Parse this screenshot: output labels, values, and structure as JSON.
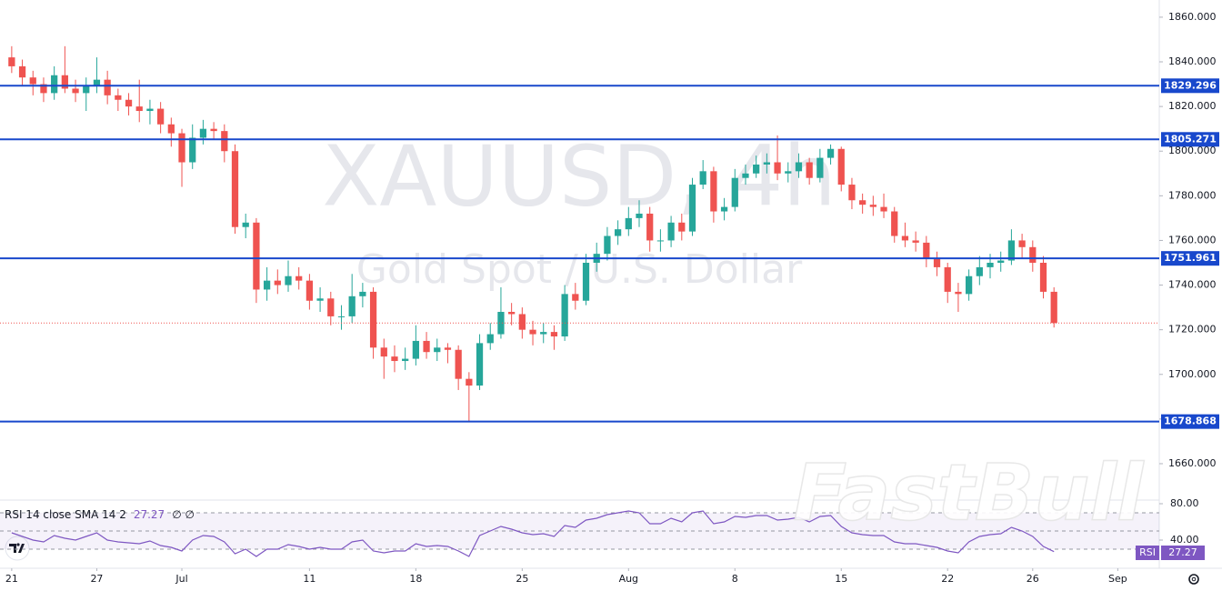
{
  "chart_data": {
    "type": "candlestick",
    "title": "XAUUSD, 4h",
    "subtitle": "Gold Spot / U.S. Dollar",
    "watermark": "FastBull",
    "xlim": [
      -1.1,
      107.9
    ],
    "xticks": [
      {
        "value": 0,
        "label": "21"
      },
      {
        "value": 8,
        "label": "27"
      },
      {
        "value": 16,
        "label": "Jul"
      },
      {
        "value": 28,
        "label": "11"
      },
      {
        "value": 38,
        "label": "18"
      },
      {
        "value": 48,
        "label": "25"
      },
      {
        "value": 58,
        "label": "Aug"
      },
      {
        "value": 68,
        "label": "8"
      },
      {
        "value": 78,
        "label": "15"
      },
      {
        "value": 88,
        "label": "22"
      },
      {
        "value": 96,
        "label": "26"
      },
      {
        "value": 104,
        "label": "Sep"
      }
    ],
    "ylim": [
      1643.7,
      1867.7
    ],
    "yticks": [
      {
        "value": 1660,
        "label": "1660.000"
      },
      {
        "value": 1680,
        "label": "1680.000"
      },
      {
        "value": 1700,
        "label": "1700.000"
      },
      {
        "value": 1720,
        "label": "1720.000"
      },
      {
        "value": 1740,
        "label": "1740.000"
      },
      {
        "value": 1760,
        "label": "1760.000"
      },
      {
        "value": 1780,
        "label": "1780.000"
      },
      {
        "value": 1800,
        "label": "1800.000"
      },
      {
        "value": 1820,
        "label": "1820.000"
      },
      {
        "value": 1840,
        "label": "1840.000"
      },
      {
        "value": 1860,
        "label": "1860.000"
      }
    ],
    "up_color": "#26a69a",
    "down_color": "#ef5350",
    "open": [
      1842,
      1838,
      1833,
      1830,
      1826,
      1834,
      1828,
      1826,
      1829,
      1832,
      1825,
      1823,
      1820,
      1818,
      1819,
      1812,
      1808,
      1795,
      1806,
      1810,
      1809,
      1800,
      1766,
      1768,
      1738,
      1742,
      1740,
      1744,
      1742,
      1733,
      1734,
      1726,
      1726,
      1735,
      1737,
      1712,
      1708,
      1706,
      1707,
      1715,
      1710,
      1712,
      1711,
      1698,
      1695,
      1714,
      1718,
      1728,
      1727,
      1720,
      1718,
      1719,
      1717,
      1736,
      1733,
      1750,
      1754,
      1762,
      1765,
      1770,
      1772,
      1760,
      1760,
      1768,
      1764,
      1785,
      1791,
      1773,
      1775,
      1788,
      1790,
      1794,
      1795,
      1790,
      1791,
      1795,
      1788,
      1797,
      1801,
      1785,
      1778,
      1776,
      1775,
      1773,
      1762,
      1760,
      1759,
      1752,
      1748,
      1737,
      1736,
      1744,
      1748,
      1750,
      1751,
      1760,
      1757,
      1750,
      1737
    ],
    "high": [
      1847,
      1841,
      1836,
      1833,
      1838,
      1847,
      1832,
      1833,
      1842,
      1836,
      1828,
      1826,
      1832,
      1823,
      1822,
      1815,
      1810,
      1812,
      1814,
      1813,
      1812,
      1803,
      1772,
      1770,
      1748,
      1747,
      1751,
      1748,
      1745,
      1739,
      1737,
      1731,
      1745,
      1741,
      1739,
      1716,
      1713,
      1712,
      1722,
      1719,
      1716,
      1714,
      1713,
      1701,
      1718,
      1723,
      1739,
      1732,
      1730,
      1724,
      1723,
      1722,
      1740,
      1741,
      1754,
      1759,
      1766,
      1769,
      1775,
      1778,
      1775,
      1765,
      1771,
      1772,
      1788,
      1796,
      1793,
      1779,
      1792,
      1794,
      1798,
      1799,
      1807,
      1795,
      1799,
      1797,
      1801,
      1803,
      1802,
      1788,
      1781,
      1780,
      1781,
      1775,
      1768,
      1764,
      1762,
      1755,
      1750,
      1741,
      1747,
      1753,
      1754,
      1755,
      1765,
      1763,
      1760,
      1753,
      1739
    ],
    "low": [
      1835,
      1829,
      1825,
      1822,
      1823,
      1826,
      1822,
      1818,
      1826,
      1821,
      1818,
      1816,
      1813,
      1812,
      1808,
      1802,
      1784,
      1792,
      1803,
      1805,
      1795,
      1763,
      1761,
      1732,
      1733,
      1736,
      1737,
      1738,
      1729,
      1728,
      1722,
      1720,
      1723,
      1730,
      1707,
      1698,
      1701,
      1702,
      1704,
      1707,
      1706,
      1705,
      1693,
      1679,
      1693,
      1711,
      1716,
      1722,
      1716,
      1713,
      1714,
      1711,
      1715,
      1729,
      1731,
      1746,
      1751,
      1758,
      1762,
      1766,
      1755,
      1755,
      1757,
      1760,
      1762,
      1783,
      1768,
      1769,
      1773,
      1785,
      1788,
      1790,
      1787,
      1786,
      1788,
      1785,
      1786,
      1794,
      1782,
      1774,
      1772,
      1771,
      1770,
      1759,
      1757,
      1755,
      1748,
      1744,
      1732,
      1728,
      1733,
      1740,
      1743,
      1746,
      1749,
      1752,
      1746,
      1734,
      1721
    ],
    "close": [
      1838,
      1833,
      1830,
      1826,
      1834,
      1828,
      1826,
      1829,
      1832,
      1825,
      1823,
      1820,
      1818,
      1819,
      1812,
      1808,
      1795,
      1806,
      1810,
      1809,
      1800,
      1766,
      1768,
      1738,
      1742,
      1740,
      1744,
      1742,
      1733,
      1734,
      1726,
      1726,
      1735,
      1737,
      1712,
      1708,
      1706,
      1707,
      1715,
      1710,
      1712,
      1711,
      1698,
      1695,
      1714,
      1718,
      1728,
      1727,
      1720,
      1718,
      1719,
      1717,
      1736,
      1733,
      1750,
      1754,
      1762,
      1765,
      1770,
      1772,
      1760,
      1760,
      1768,
      1764,
      1785,
      1791,
      1773,
      1775,
      1788,
      1790,
      1794,
      1795,
      1790,
      1791,
      1795,
      1788,
      1797,
      1801,
      1785,
      1778,
      1776,
      1775,
      1773,
      1762,
      1760,
      1759,
      1752,
      1748,
      1737,
      1736,
      1744,
      1748,
      1750,
      1751,
      1760,
      1757,
      1750,
      1737,
      1723
    ],
    "levels": [
      1829.296,
      1805.271,
      1751.961,
      1678.868
    ],
    "level_color": "#1848cc",
    "indicator": {
      "type": "line",
      "name": "RSI 14 close SMA 14 2",
      "label": "RSI",
      "extra_values": "∅  ∅",
      "color": "#7e57c2",
      "ylim": [
        9,
        84
      ],
      "yticks": [
        {
          "value": 80,
          "label": "80.00"
        },
        {
          "value": 40,
          "label": "40.00"
        }
      ],
      "bands": [
        70,
        50,
        30
      ],
      "values": [
        48,
        44,
        40,
        38,
        45,
        42,
        40,
        44,
        48,
        40,
        38,
        37,
        36,
        39,
        34,
        32,
        28,
        40,
        45,
        44,
        38,
        25,
        30,
        22,
        30,
        30,
        35,
        33,
        30,
        32,
        30,
        30,
        38,
        40,
        28,
        26,
        28,
        28,
        36,
        33,
        34,
        33,
        28,
        22,
        45,
        50,
        55,
        52,
        48,
        46,
        47,
        44,
        56,
        54,
        62,
        64,
        68,
        70,
        72,
        70,
        58,
        58,
        64,
        60,
        70,
        72,
        58,
        60,
        66,
        65,
        67,
        67,
        62,
        63,
        65,
        60,
        66,
        67,
        55,
        48,
        46,
        45,
        45,
        38,
        36,
        36,
        34,
        32,
        28,
        26,
        38,
        44,
        46,
        47,
        54,
        50,
        44,
        33,
        27.27
      ]
    }
  }
}
